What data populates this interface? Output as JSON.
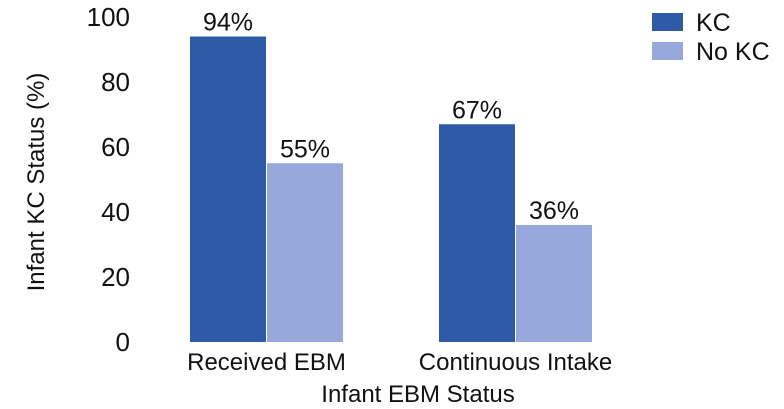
{
  "chart_data": {
    "type": "bar",
    "categories": [
      "Received EBM",
      "Continuous Intake"
    ],
    "series": [
      {
        "name": "KC",
        "values": [
          94,
          67
        ],
        "labels": [
          "94%",
          "67%"
        ],
        "color": "#2f5aa8"
      },
      {
        "name": "No KC",
        "values": [
          55,
          36
        ],
        "labels": [
          "55%",
          "36%"
        ],
        "color": "#97a9dc"
      }
    ],
    "xlabel": "Infant EBM Status",
    "ylabel": "Infant KC Status (%)",
    "ylim": [
      0,
      100
    ],
    "yticks": [
      "0",
      "20",
      "40",
      "60",
      "80",
      "100"
    ],
    "grid": false,
    "legend_position": "top-right"
  }
}
